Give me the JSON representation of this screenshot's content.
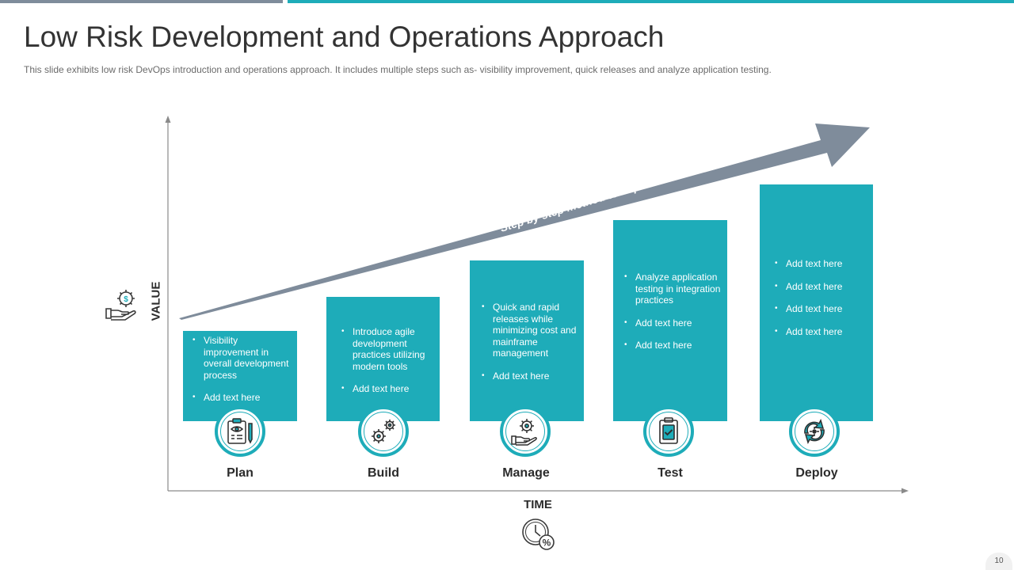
{
  "slide": {
    "title": "Low Risk Development and Operations Approach",
    "subtitle": "This slide exhibits low risk DevOps introduction and operations approach. It includes multiple steps such as- visibility improvement,  quick releases and analyze application testing.",
    "page_number": "10"
  },
  "axes": {
    "y_label": "VALUE",
    "x_label": "TIME",
    "y_icon": "hand-dollar-gear-icon",
    "x_icon": "clock-percent-icon"
  },
  "arrow": {
    "text": "Step by step method to improve business value",
    "color": "#7f8c9b"
  },
  "colors": {
    "teal": "#1eacb9",
    "gray": "#7f8c9b"
  },
  "steps": [
    {
      "label": "Plan",
      "icon": "clipboard-eye-pencil-icon",
      "bullets": [
        "Visibility improvement in overall development process",
        "Add text here"
      ]
    },
    {
      "label": "Build",
      "icon": "gears-icon",
      "bullets": [
        "Introduce agile development practices utilizing modern tools",
        "Add text here"
      ]
    },
    {
      "label": "Manage",
      "icon": "hand-gear-icon",
      "bullets": [
        "Quick and rapid releases while minimizing cost and mainframe management",
        "Add text here"
      ]
    },
    {
      "label": "Test",
      "icon": "clipboard-check-icon",
      "bullets": [
        "Analyze application testing in integration practices",
        "Add text here",
        "Add text here"
      ]
    },
    {
      "label": "Deploy",
      "icon": "cycle-arrows-icon",
      "bullets": [
        "Add text here",
        "Add text here",
        "Add text here",
        "Add text here"
      ]
    }
  ]
}
